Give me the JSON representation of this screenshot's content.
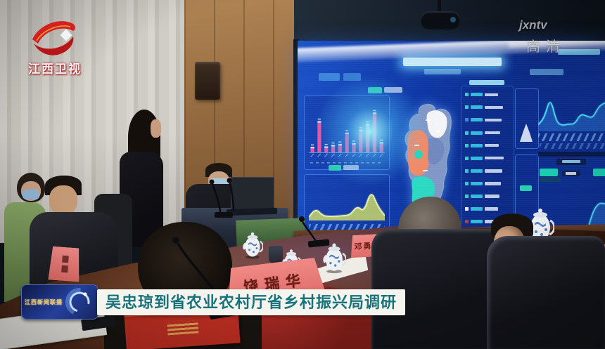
{
  "broadcast": {
    "channel_logo_text": "江西卫视",
    "watermark_line1": "jxntv",
    "watermark_line2": "高清",
    "caption_badge_text": "江西新闻联播",
    "caption_headline": "吴忠琼到省农业农村厅省乡村振兴局调研"
  },
  "scene": {
    "name_card_center_text": "饶瑞华",
    "name_card_mid_text": "邓勇国"
  },
  "dashboard": {
    "left_bar_chart": {
      "type": "bar",
      "values": [
        8,
        62,
        9,
        12,
        14,
        38,
        16,
        44,
        56,
        80,
        18
      ],
      "bar_color": "#ef4f9e"
    },
    "left_area_chart": {
      "type": "area",
      "values": [
        8,
        32,
        12,
        9,
        10,
        12,
        14,
        40,
        22,
        85,
        38,
        12
      ],
      "fill_color": "#c9d868",
      "line_color": "#eef4b0"
    },
    "right_top_chart": {
      "type": "area",
      "values": [
        14,
        30,
        80,
        20,
        12,
        16,
        15,
        40,
        34,
        30,
        58,
        66
      ],
      "fill_color": "#2f7fd9",
      "line_color": "#4fe3ff"
    },
    "right_bottom_chart": {
      "type": "area",
      "values": [
        22,
        19,
        21,
        18,
        20,
        19,
        17,
        15,
        14,
        55,
        72,
        70
      ],
      "fill_color": "#2f7fd9",
      "line_color": "#4fe3ff"
    },
    "right_list": {
      "row_count": 12,
      "square_colors": [
        "#2fd0c0",
        "#2fd0c0",
        "#3a86d8",
        "#2fd0c0",
        "#2fd0c0",
        "#2fd0c0",
        "#2fd0c0",
        "#2fd0c0",
        "#2fd0c0",
        "#e8ecf2",
        "#a84040",
        "#d85454"
      ],
      "label_color": "#38d2ea"
    },
    "map_region_colors": {
      "base": "#8098c6",
      "northeast": "#f2f4f8",
      "west": "#ef8a68",
      "south": "#2bd9c2",
      "center_dot": "#23d6ba"
    }
  }
}
